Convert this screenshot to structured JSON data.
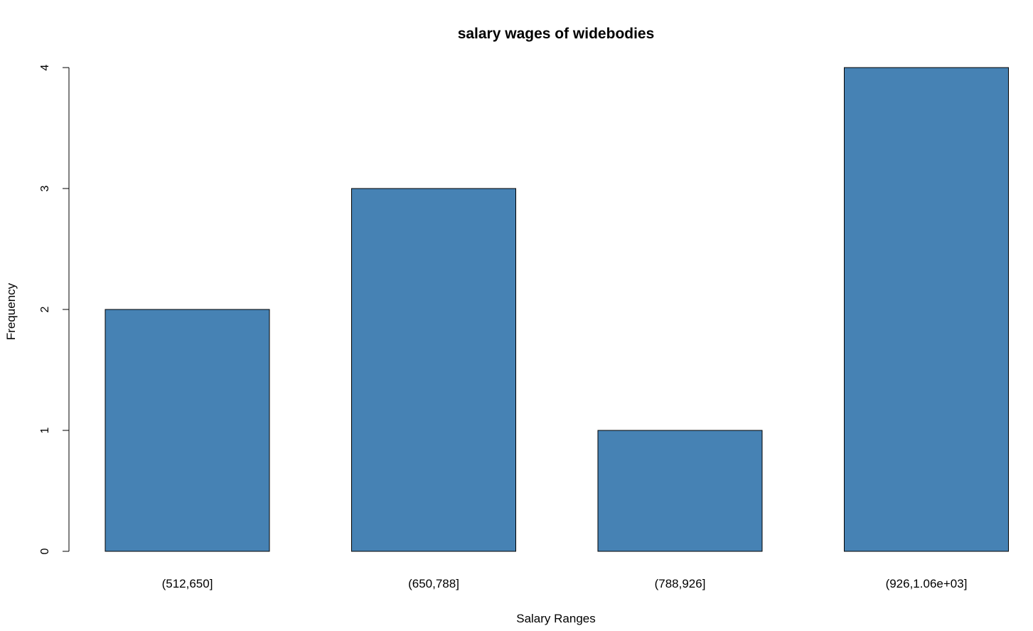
{
  "chart_data": {
    "type": "bar",
    "title": "salary wages of widebodies",
    "xlabel": "Salary Ranges",
    "ylabel": "Frequency",
    "categories": [
      "(512,650]",
      "(650,788]",
      "(788,926]",
      "(926,1.06e+03]"
    ],
    "values": [
      2,
      3,
      1,
      4
    ],
    "ylim": [
      0,
      4
    ],
    "yticks": [
      "0",
      "1",
      "2",
      "3",
      "4"
    ],
    "grid": false,
    "legend": "none",
    "bar_color": "#4682b4",
    "bar_border_color": "#000000"
  }
}
